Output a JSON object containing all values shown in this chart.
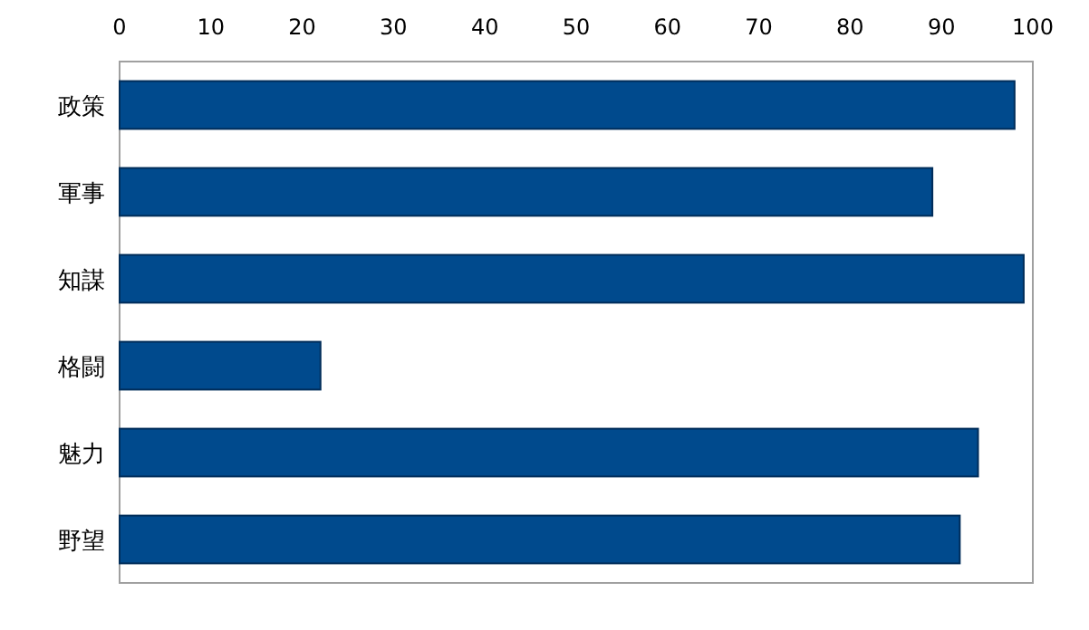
{
  "chart_data": {
    "type": "bar",
    "orientation": "horizontal",
    "categories": [
      "政策",
      "軍事",
      "知謀",
      "格闘",
      "魅力",
      "野望"
    ],
    "values": [
      98,
      89,
      99,
      22,
      94,
      92
    ],
    "color": "#004a8d",
    "xlim": [
      0,
      100
    ],
    "xticks": [
      0,
      10,
      20,
      30,
      40,
      50,
      60,
      70,
      80,
      90,
      100
    ],
    "grid": false
  }
}
